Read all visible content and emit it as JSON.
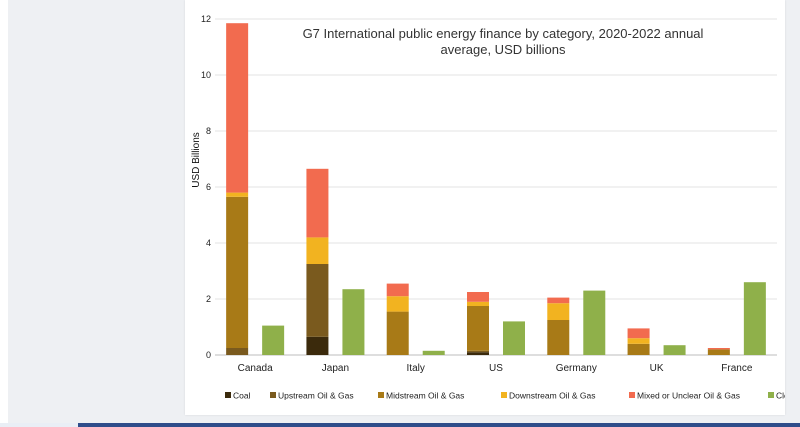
{
  "chart_data": {
    "type": "bar",
    "stacked": true,
    "title_lines": [
      "G7 International public energy finance by category, 2020-2022 annual",
      "average, USD billions"
    ],
    "xlabel": "",
    "ylabel": "USD Billions",
    "ylim": [
      0,
      12
    ],
    "yticks": [
      0,
      2,
      4,
      6,
      8,
      10,
      12
    ],
    "grid": true,
    "legend_position": "bottom",
    "categories": [
      "Canada",
      "Japan",
      "Italy",
      "US",
      "Germany",
      "UK",
      "France"
    ],
    "fossil_series": [
      {
        "name": "Coal",
        "color": "#3b2a0c",
        "values": [
          0,
          0.65,
          0,
          0.1,
          0,
          0,
          0
        ]
      },
      {
        "name": "Upstream Oil & Gas",
        "color": "#7a5a1e",
        "values": [
          0.25,
          2.6,
          0,
          0.05,
          0,
          0,
          0
        ]
      },
      {
        "name": "Midstream Oil & Gas",
        "color": "#a87a17",
        "values": [
          5.4,
          0,
          1.55,
          1.6,
          1.25,
          0.4,
          0.2
        ]
      },
      {
        "name": "Downstream Oil & Gas",
        "color": "#f2b320",
        "values": [
          0.15,
          0.95,
          0.55,
          0.15,
          0.6,
          0.2,
          0
        ]
      },
      {
        "name": "Mixed or Unclear Oil & Gas",
        "color": "#f26b4f",
        "values": [
          6.05,
          2.45,
          0.45,
          0.35,
          0.2,
          0.35,
          0.05
        ]
      }
    ],
    "clean_series": {
      "name": "Clean",
      "color": "#8fb04a",
      "values": [
        1.05,
        2.35,
        0.15,
        1.2,
        2.3,
        0.35,
        2.6
      ]
    }
  }
}
